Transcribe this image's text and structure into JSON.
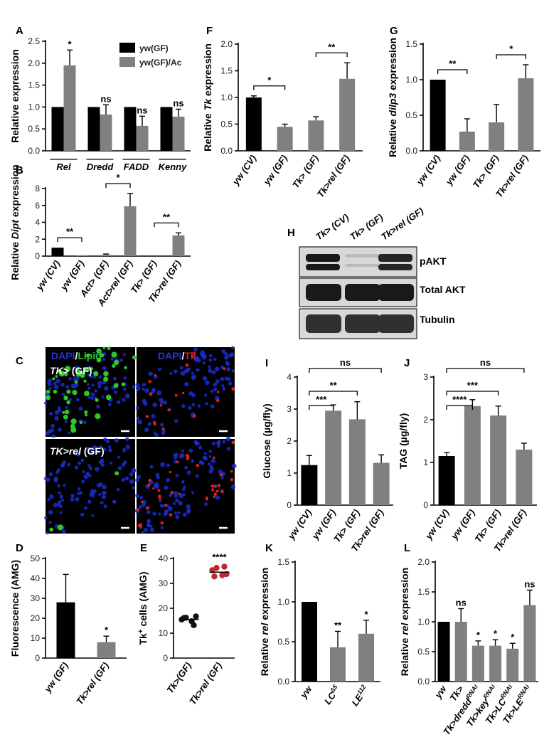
{
  "figure": {
    "panel_letters": [
      "A",
      "B",
      "C",
      "D",
      "E",
      "F",
      "G",
      "H",
      "I",
      "J",
      "K",
      "L"
    ]
  },
  "panel_c": {
    "top_left_stain": {
      "a": "DAPI",
      "sep": "/",
      "b": "Lipid"
    },
    "top_right_stain": {
      "a": "DAPI",
      "sep": "/",
      "b": "Tk"
    },
    "top_label": {
      "a": "TK>",
      "b": " (GF)"
    },
    "bottom_label": {
      "a": "TK>rel",
      "b": " (GF)"
    },
    "colors": {
      "dapi": "#1a2ccc",
      "lipid": "#2ec52e",
      "tk": "#e02020",
      "bg": "#000000"
    }
  },
  "panel_h": {
    "lanes": [
      "Tk> (CV)",
      "Tk> (GF)",
      "Tk>rel (GF)"
    ],
    "bands": [
      {
        "label": "pAKT",
        "intensity": [
          1.0,
          0.3,
          0.95
        ]
      },
      {
        "label": "Total AKT",
        "intensity": [
          1.0,
          1.0,
          1.0
        ]
      },
      {
        "label": "Tubulin",
        "intensity": [
          0.9,
          0.9,
          0.9
        ]
      }
    ]
  },
  "chart_data": [
    {
      "panel": "A",
      "type": "bar",
      "categories": [
        "Rel",
        "Dredd",
        "FADD",
        "Kenny"
      ],
      "series": [
        {
          "name": "yw(GF)",
          "color": "#000000",
          "values": [
            1.0,
            1.0,
            1.0,
            1.0
          ],
          "errors": [
            0,
            0,
            0,
            0
          ]
        },
        {
          "name": "yw(GF)/Ac",
          "color": "#808080",
          "values": [
            1.95,
            0.83,
            0.57,
            0.78
          ],
          "errors": [
            0.35,
            0.22,
            0.22,
            0.17
          ]
        }
      ],
      "ylabel": "Relative expression",
      "ylim": [
        0,
        2.5
      ],
      "yticks": [
        0.0,
        0.5,
        1.0,
        1.5,
        2.0,
        2.5
      ],
      "significance": [
        "*",
        "ns",
        "ns",
        "ns"
      ],
      "legend": "top-right"
    },
    {
      "panel": "B",
      "type": "bar",
      "categories": [
        "yw (CV)",
        "yw (GF)",
        "Act> (GF)",
        "Act>rel (GF)",
        "Tk> (GF)",
        "Tk>rel (GF)"
      ],
      "values": [
        1.0,
        0.1,
        0.15,
        5.9,
        0.0,
        2.45
      ],
      "errors": [
        0,
        0,
        0.1,
        1.5,
        0,
        0.3
      ],
      "colors": [
        "#000000",
        "#808080",
        "#808080",
        "#808080",
        "#808080",
        "#808080"
      ],
      "ylabel_parts": [
        "Relative ",
        "Dipt",
        " expression"
      ],
      "ylim": [
        0,
        8
      ],
      "yticks": [
        0,
        2,
        4,
        6,
        8
      ],
      "comparisons": [
        {
          "from": 0,
          "to": 1,
          "label": "**"
        },
        {
          "from": 2,
          "to": 3,
          "label": "*"
        },
        {
          "from": 4,
          "to": 5,
          "label": "**"
        }
      ]
    },
    {
      "panel": "D",
      "type": "bar",
      "categories": [
        "yw (GF)",
        "Tk>rel (GF)"
      ],
      "values": [
        28,
        8
      ],
      "errors": [
        14,
        3
      ],
      "colors": [
        "#000000",
        "#808080"
      ],
      "ylabel": "Fluorescence (AMG)",
      "ylim": [
        0,
        50
      ],
      "yticks": [
        0,
        10,
        20,
        30,
        40,
        50
      ],
      "significance": [
        "",
        "*"
      ]
    },
    {
      "panel": "E",
      "type": "scatter",
      "categories": [
        "Tk>(GF)",
        "Tk>rel (GF)"
      ],
      "points": [
        [
          15.2,
          16.5,
          14.5,
          17.0,
          15.8,
          13.5
        ],
        [
          35.0,
          36.5,
          33.0,
          34.0,
          32.5,
          37.0
        ]
      ],
      "means": [
        15.5,
        34.5
      ],
      "colors": [
        "#111111",
        "#c0272d"
      ],
      "ylabel_parts": [
        "Tk",
        "+",
        " cells (AMG)"
      ],
      "ylim": [
        0,
        40
      ],
      "yticks": [
        0,
        10,
        20,
        30,
        40
      ],
      "significance": [
        "",
        "****"
      ]
    },
    {
      "panel": "F",
      "type": "bar",
      "categories": [
        "yw (CV)",
        "yw (GF)",
        "Tk> (GF)",
        "Tk>rel (GF)"
      ],
      "values": [
        1.0,
        0.45,
        0.57,
        1.35
      ],
      "errors": [
        0.03,
        0.05,
        0.07,
        0.3
      ],
      "colors": [
        "#000000",
        "#808080",
        "#808080",
        "#808080"
      ],
      "ylabel_parts": [
        "Relative ",
        "Tk",
        " expression"
      ],
      "ylim": [
        0,
        2.0
      ],
      "yticks": [
        0.0,
        0.5,
        1.0,
        1.5,
        2.0
      ],
      "comparisons": [
        {
          "from": 0,
          "to": 1,
          "label": "*"
        },
        {
          "from": 2,
          "to": 3,
          "label": "**"
        }
      ]
    },
    {
      "panel": "G",
      "type": "bar",
      "categories": [
        "yw (CV)",
        "yw (GF)",
        "Tk> (GF)",
        "Tk>rel (GF)"
      ],
      "values": [
        1.0,
        0.27,
        0.4,
        1.02
      ],
      "errors": [
        0,
        0.18,
        0.25,
        0.19
      ],
      "colors": [
        "#000000",
        "#808080",
        "#808080",
        "#808080"
      ],
      "ylabel_parts": [
        "Relative ",
        "dilp3",
        " expression"
      ],
      "ylim": [
        0,
        1.5
      ],
      "yticks": [
        0.0,
        0.5,
        1.0,
        1.5
      ],
      "comparisons": [
        {
          "from": 0,
          "to": 1,
          "label": "**"
        },
        {
          "from": 2,
          "to": 3,
          "label": "*"
        }
      ]
    },
    {
      "panel": "I",
      "type": "bar",
      "categories": [
        "yw (CV)",
        "yw (GF)",
        "Tk> (GF)",
        "Tk>rel (GF)"
      ],
      "values": [
        1.25,
        2.95,
        2.68,
        1.32
      ],
      "errors": [
        0.3,
        0.18,
        0.55,
        0.25
      ],
      "colors": [
        "#000000",
        "#808080",
        "#808080",
        "#808080"
      ],
      "ylabel": "Glucose (µg/fly)",
      "ylim": [
        0,
        4
      ],
      "yticks": [
        0,
        1,
        2,
        3,
        4
      ],
      "comparisons": [
        {
          "from": 0,
          "to": 1,
          "label": "***"
        },
        {
          "from": 0,
          "to": 2,
          "label": "**"
        },
        {
          "from": 0,
          "to": 3,
          "label": "ns"
        }
      ]
    },
    {
      "panel": "J",
      "type": "bar",
      "categories": [
        "yw (CV)",
        "yw (GF)",
        "Tk> (GF)",
        "Tk>rel (GF)"
      ],
      "values": [
        1.15,
        2.32,
        2.1,
        1.3
      ],
      "errors": [
        0.08,
        0.15,
        0.22,
        0.15
      ],
      "colors": [
        "#000000",
        "#808080",
        "#808080",
        "#808080"
      ],
      "ylabel": "TAG (µg/fly)",
      "ylim": [
        0,
        3
      ],
      "yticks": [
        0,
        1,
        2,
        3
      ],
      "comparisons": [
        {
          "from": 0,
          "to": 1,
          "label": "****"
        },
        {
          "from": 0,
          "to": 2,
          "label": "***"
        },
        {
          "from": 0,
          "to": 3,
          "label": "ns"
        }
      ]
    },
    {
      "panel": "K",
      "type": "bar",
      "categories": [
        {
          "base": "yw",
          "sup": ""
        },
        {
          "base": "LC",
          "sup": "Δ5"
        },
        {
          "base": "LE",
          "sup": "112"
        }
      ],
      "values": [
        1.0,
        0.43,
        0.6
      ],
      "errors": [
        0,
        0.2,
        0.17
      ],
      "colors": [
        "#000000",
        "#808080",
        "#808080"
      ],
      "ylabel_parts": [
        "Relative ",
        "rel",
        " expression"
      ],
      "ylim": [
        0,
        1.5
      ],
      "yticks": [
        0.0,
        0.5,
        1.0,
        1.5
      ],
      "significance": [
        "",
        "**",
        "*"
      ]
    },
    {
      "panel": "L",
      "type": "bar",
      "categories": [
        {
          "base": "yw",
          "sup": ""
        },
        {
          "base": "Tk>",
          "sup": ""
        },
        {
          "base": "Tk>dredd",
          "sup": "RNAi"
        },
        {
          "base": "Tk>key",
          "sup": "RNAi"
        },
        {
          "base": "Tk>LC",
          "sup": "RNAi"
        },
        {
          "base": "Tk>LE",
          "sup": "RNAi"
        }
      ],
      "values": [
        1.0,
        1.0,
        0.6,
        0.6,
        0.55,
        1.28
      ],
      "errors": [
        0,
        0.22,
        0.08,
        0.1,
        0.09,
        0.25
      ],
      "colors": [
        "#000000",
        "#808080",
        "#808080",
        "#808080",
        "#808080",
        "#808080"
      ],
      "ylabel_parts": [
        "Relative ",
        "rel",
        " expression"
      ],
      "ylim": [
        0,
        2.0
      ],
      "yticks": [
        0.0,
        0.5,
        1.0,
        1.5,
        2.0
      ],
      "significance": [
        "",
        "ns",
        "*",
        "*",
        "*",
        "ns"
      ]
    }
  ]
}
